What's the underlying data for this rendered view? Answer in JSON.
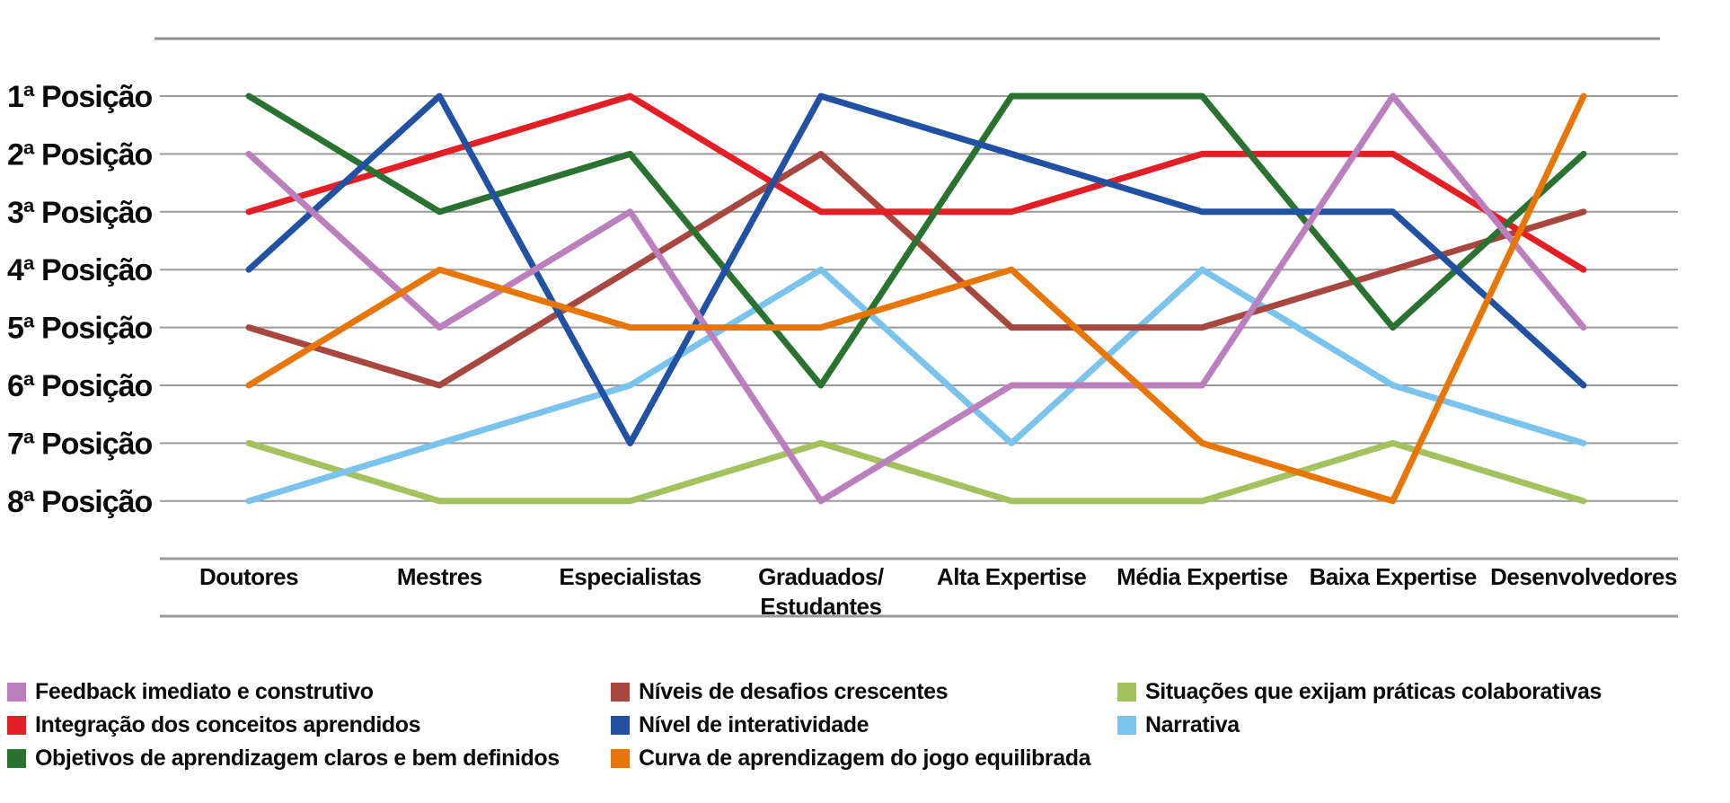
{
  "chart_data": {
    "type": "line",
    "subtype": "bump-ranking",
    "title": "",
    "categories": [
      "Doutores",
      "Mestres",
      "Especialistas",
      "Graduados/Estudantes",
      "Alta Expertise",
      "Média Expertise",
      "Baixa Expertise",
      "Desenvolvedores"
    ],
    "y_tick_labels": [
      "1ª Posição",
      "2ª Posição",
      "3ª Posição",
      "4ª Posição",
      "5ª Posição",
      "6ª Posição",
      "7ª Posição",
      "8ª Posição"
    ],
    "rank_axis": {
      "best": 1,
      "worst": 8,
      "inverted": true
    },
    "grid": "horizontal-only",
    "grid_color": "#9a9a9a",
    "border_color": "#8f8f8f",
    "legend_position": "bottom",
    "series": [
      {
        "name": "Feedback imediato e construtivo",
        "color": "#bc7fbe",
        "ranks": [
          2,
          5,
          3,
          8,
          6,
          6,
          1,
          5
        ]
      },
      {
        "name": "Integração dos conceitos aprendidos",
        "color": "#e41e25",
        "ranks": [
          3,
          2,
          1,
          3,
          3,
          2,
          2,
          4
        ]
      },
      {
        "name": "Objetivos de aprendizagem claros e bem definidos",
        "color": "#2a7230",
        "ranks": [
          1,
          3,
          2,
          6,
          1,
          1,
          5,
          2
        ]
      },
      {
        "name": "Níveis de desafios crescentes",
        "color": "#a84740",
        "ranks": [
          5,
          6,
          4,
          2,
          5,
          5,
          4,
          3
        ]
      },
      {
        "name": "Nível de interatividade",
        "color": "#2151a2",
        "ranks": [
          4,
          1,
          7,
          1,
          2,
          3,
          3,
          6
        ]
      },
      {
        "name": "Curva de aprendizagem do jogo equilibrada",
        "color": "#e87606",
        "ranks": [
          6,
          4,
          5,
          5,
          4,
          7,
          8,
          1
        ]
      },
      {
        "name": "Situações que exijam práticas colaborativas",
        "color": "#a3c25e",
        "ranks": [
          7,
          8,
          8,
          7,
          8,
          8,
          7,
          8
        ]
      },
      {
        "name": "Narrativa",
        "color": "#7ac3ec",
        "ranks": [
          8,
          7,
          6,
          4,
          7,
          4,
          6,
          7
        ]
      }
    ],
    "paint_order": [
      6,
      7,
      3,
      1,
      2,
      4,
      0,
      5
    ]
  },
  "legend": {
    "columns": [
      [
        0,
        1,
        2
      ],
      [
        3,
        4,
        5
      ],
      [
        6,
        7
      ]
    ]
  }
}
